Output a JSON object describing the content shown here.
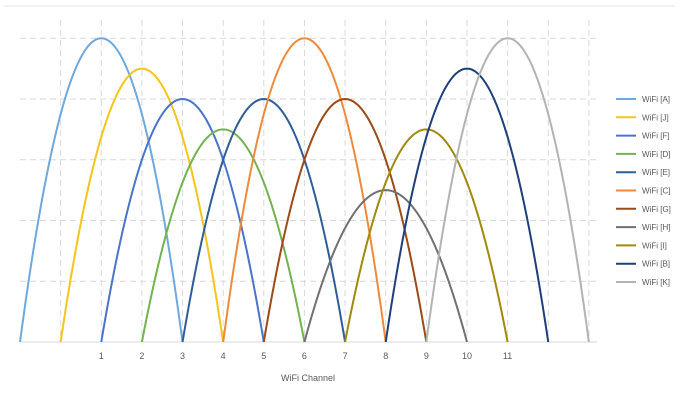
{
  "chart_data": {
    "type": "line",
    "title": "",
    "xlabel": "WiFi Channel",
    "ylabel": "",
    "xlim": [
      -1,
      13.2
    ],
    "ylim": [
      0,
      5.3
    ],
    "x_ticks": [
      1,
      2,
      3,
      4,
      5,
      6,
      7,
      8,
      9,
      10,
      11
    ],
    "y_gridlines": [
      1,
      2,
      3,
      4,
      5
    ],
    "x_gridlines": [
      0,
      1,
      2,
      3,
      4,
      5,
      6,
      7,
      8,
      9,
      10,
      11,
      12,
      13
    ],
    "grid": true,
    "legend_position": "right",
    "curve_half_width": 2,
    "series": [
      {
        "name": "WiFi [A]",
        "center": 1,
        "peak": 5.0,
        "color": "#6fa8dc"
      },
      {
        "name": "WiFi [J]",
        "center": 2,
        "peak": 4.5,
        "color": "#f6c51a"
      },
      {
        "name": "WiFi [F]",
        "center": 3,
        "peak": 4.0,
        "color": "#4a74c9"
      },
      {
        "name": "WiFi [D]",
        "center": 4,
        "peak": 3.5,
        "color": "#72b34f"
      },
      {
        "name": "WiFi [E]",
        "center": 5,
        "peak": 4.0,
        "color": "#2f5d97"
      },
      {
        "name": "WiFi [C]",
        "center": 6,
        "peak": 5.0,
        "color": "#ef8a3c"
      },
      {
        "name": "WiFi [G]",
        "center": 7,
        "peak": 4.0,
        "color": "#9c4a17"
      },
      {
        "name": "WiFi [H]",
        "center": 8,
        "peak": 2.5,
        "color": "#707070"
      },
      {
        "name": "WiFi [I]",
        "center": 9,
        "peak": 3.5,
        "color": "#a08a0a"
      },
      {
        "name": "WiFi [B]",
        "center": 10,
        "peak": 4.5,
        "color": "#1f3f7a"
      },
      {
        "name": "WiFi [K]",
        "center": 11,
        "peak": 5.0,
        "color": "#b3b3b3"
      }
    ]
  }
}
